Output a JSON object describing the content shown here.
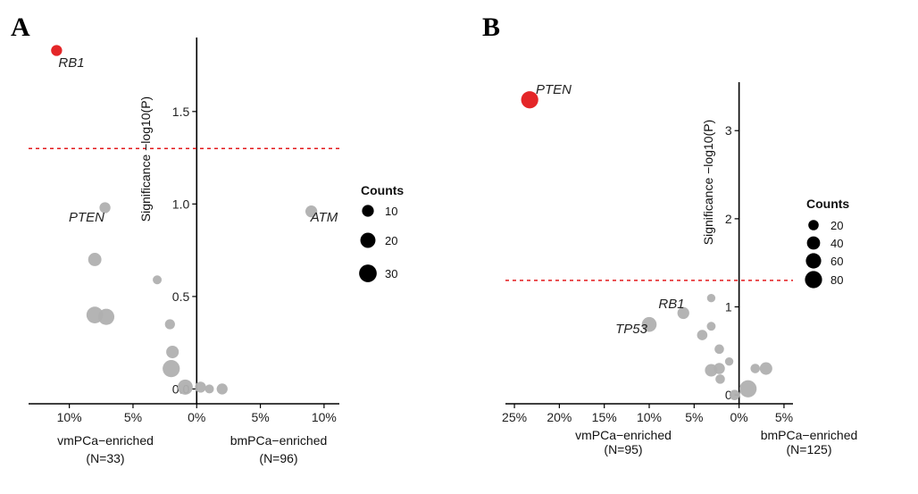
{
  "chart_data": [
    {
      "panel": "A",
      "type": "scatter",
      "ylabel": "Significance −log10(P)",
      "xlabel_left": "vmPCa−enriched",
      "xlabel_left_n": "(N=33)",
      "xlabel_right": "bmPCa−enriched",
      "xlabel_right_n": "(N=96)",
      "xticks": [
        {
          "value": -10,
          "label": "10%"
        },
        {
          "value": -5,
          "label": "5%"
        },
        {
          "value": 0,
          "label": "0%"
        },
        {
          "value": 5,
          "label": "5%"
        },
        {
          "value": 10,
          "label": "10%"
        }
      ],
      "yticks": [
        {
          "value": 0,
          "label": "0.0"
        },
        {
          "value": 0.5,
          "label": "0.5"
        },
        {
          "value": 1,
          "label": "1.0"
        },
        {
          "value": 1.5,
          "label": "1.5"
        }
      ],
      "xlim": [
        -13.2,
        11.2
      ],
      "ylim": [
        -0.08,
        1.9
      ],
      "threshold": 1.3,
      "legend": {
        "title": "Counts",
        "entries": [
          10,
          20,
          30
        ],
        "position": "right"
      },
      "points": [
        {
          "x": -11,
          "y": 1.83,
          "count": 8,
          "color": "#e31a1c",
          "label": "RB1"
        },
        {
          "x": -7.2,
          "y": 0.98,
          "count": 8,
          "color": "#b0b0b0",
          "label": "PTEN"
        },
        {
          "x": 9,
          "y": 0.96,
          "count": 10,
          "color": "#b0b0b0",
          "label": "ATM"
        },
        {
          "x": -8,
          "y": 0.7,
          "count": 14,
          "color": "#b0b0b0",
          "label": ""
        },
        {
          "x": -3.1,
          "y": 0.59,
          "count": 4,
          "color": "#b0b0b0",
          "label": ""
        },
        {
          "x": -8,
          "y": 0.4,
          "count": 26,
          "color": "#b0b0b0",
          "label": ""
        },
        {
          "x": -7.1,
          "y": 0.39,
          "count": 24,
          "color": "#b0b0b0",
          "label": ""
        },
        {
          "x": -2.1,
          "y": 0.35,
          "count": 6,
          "color": "#b0b0b0",
          "label": ""
        },
        {
          "x": -1.9,
          "y": 0.2,
          "count": 12,
          "color": "#b0b0b0",
          "label": ""
        },
        {
          "x": -2.0,
          "y": 0.11,
          "count": 28,
          "color": "#b0b0b0",
          "label": ""
        },
        {
          "x": -0.9,
          "y": 0.01,
          "count": 20,
          "color": "#b0b0b0",
          "label": ""
        },
        {
          "x": 0.3,
          "y": 0.01,
          "count": 8,
          "color": "#b0b0b0",
          "label": ""
        },
        {
          "x": 1.0,
          "y": 0.0,
          "count": 4,
          "color": "#b0b0b0",
          "label": ""
        },
        {
          "x": 2.0,
          "y": 0.0,
          "count": 8,
          "color": "#b0b0b0",
          "label": ""
        }
      ]
    },
    {
      "panel": "B",
      "type": "scatter",
      "ylabel": "Significance −log10(P)",
      "xlabel_left": "vmPCa−enriched",
      "xlabel_left_n": "(N=95)",
      "xlabel_right": "bmPCa−enriched",
      "xlabel_right_n": "(N=125)",
      "xticks": [
        {
          "value": -25,
          "label": "25%"
        },
        {
          "value": -20,
          "label": "20%"
        },
        {
          "value": -15,
          "label": "15%"
        },
        {
          "value": -10,
          "label": "10%"
        },
        {
          "value": -5,
          "label": "5%"
        },
        {
          "value": 0,
          "label": "0%"
        },
        {
          "value": 5,
          "label": "5%"
        }
      ],
      "yticks": [
        {
          "value": 0,
          "label": "0"
        },
        {
          "value": 1,
          "label": "1"
        },
        {
          "value": 2,
          "label": "2"
        },
        {
          "value": 3,
          "label": "3"
        }
      ],
      "xlim": [
        -26,
        6
      ],
      "ylim": [
        -0.1,
        3.55
      ],
      "threshold": 1.3,
      "legend": {
        "title": "Counts",
        "entries": [
          20,
          40,
          60,
          80
        ],
        "position": "right"
      },
      "points": [
        {
          "x": -23.3,
          "y": 3.35,
          "count": 80,
          "color": "#e31a1c",
          "label": "PTEN"
        },
        {
          "x": -6.2,
          "y": 0.93,
          "count": 30,
          "color": "#b0b0b0",
          "label": "RB1"
        },
        {
          "x": -10,
          "y": 0.8,
          "count": 55,
          "color": "#b0b0b0",
          "label": "TP53"
        },
        {
          "x": -3.1,
          "y": 1.1,
          "count": 10,
          "color": "#b0b0b0",
          "label": ""
        },
        {
          "x": -3.1,
          "y": 0.78,
          "count": 12,
          "color": "#b0b0b0",
          "label": ""
        },
        {
          "x": -4.1,
          "y": 0.68,
          "count": 20,
          "color": "#b0b0b0",
          "label": ""
        },
        {
          "x": -2.2,
          "y": 0.52,
          "count": 15,
          "color": "#b0b0b0",
          "label": ""
        },
        {
          "x": -1.1,
          "y": 0.38,
          "count": 10,
          "color": "#b0b0b0",
          "label": ""
        },
        {
          "x": -3.1,
          "y": 0.28,
          "count": 35,
          "color": "#b0b0b0",
          "label": ""
        },
        {
          "x": -2.2,
          "y": 0.3,
          "count": 25,
          "color": "#b0b0b0",
          "label": ""
        },
        {
          "x": -2.1,
          "y": 0.18,
          "count": 15,
          "color": "#b0b0b0",
          "label": ""
        },
        {
          "x": 1.8,
          "y": 0.3,
          "count": 15,
          "color": "#b0b0b0",
          "label": ""
        },
        {
          "x": 3.0,
          "y": 0.3,
          "count": 35,
          "color": "#b0b0b0",
          "label": ""
        },
        {
          "x": 1.0,
          "y": 0.07,
          "count": 80,
          "color": "#b0b0b0",
          "label": ""
        },
        {
          "x": -0.5,
          "y": 0.0,
          "count": 20,
          "color": "#b0b0b0",
          "label": ""
        }
      ]
    }
  ]
}
